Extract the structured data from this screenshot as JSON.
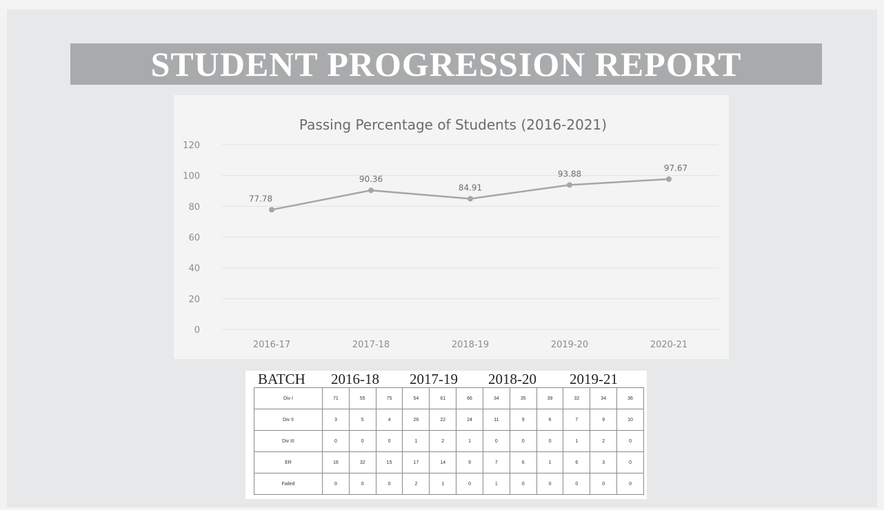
{
  "page": {
    "title": "STUDENT PROGRESSION REPORT"
  },
  "chart_data": {
    "type": "line",
    "title": "Passing Percentage of Students (2016-2021)",
    "categories": [
      "2016-17",
      "2017-18",
      "2018-19",
      "2019-20",
      "2020-21"
    ],
    "series": [
      {
        "values": [
          77.78,
          90.36,
          84.91,
          93.88,
          97.67
        ],
        "color": "#a6a6a6"
      }
    ],
    "data_labels": [
      "77.78",
      "90.36",
      "84.91",
      "93.88",
      "97.67"
    ],
    "ylim": [
      0,
      120
    ],
    "yticks": [
      0,
      20,
      40,
      60,
      80,
      100,
      120
    ],
    "grid": true,
    "xlabel": "",
    "ylabel": ""
  },
  "table": {
    "batch_label": "BATCH",
    "batches": [
      "2016-18",
      "2017-19",
      "2018-20",
      "2019-21"
    ],
    "rows": [
      {
        "label": "Div I",
        "values": [
          "71",
          "55",
          "75",
          "54",
          "61",
          "66",
          "34",
          "35",
          "39",
          "32",
          "34",
          "36"
        ]
      },
      {
        "label": "Div II",
        "values": [
          "3",
          "5",
          "4",
          "26",
          "22",
          "24",
          "11",
          "9",
          "6",
          "7",
          "9",
          "10"
        ]
      },
      {
        "label": "Div III",
        "values": [
          "0",
          "0",
          "0",
          "1",
          "2",
          "1",
          "0",
          "0",
          "0",
          "1",
          "2",
          "0"
        ]
      },
      {
        "label": "ER",
        "values": [
          "16",
          "32",
          "15",
          "17",
          "14",
          "9",
          "7",
          "6",
          "1",
          "6",
          "3",
          "0"
        ]
      },
      {
        "label": "Failed",
        "values": [
          "0",
          "0",
          "0",
          "2",
          "1",
          "0",
          "1",
          "0",
          "0",
          "0",
          "0",
          "0"
        ]
      }
    ]
  },
  "colors": {
    "title_bar": "#a9aaab",
    "slide_background": "#e7e8e9",
    "line": "#a6a6a6"
  }
}
